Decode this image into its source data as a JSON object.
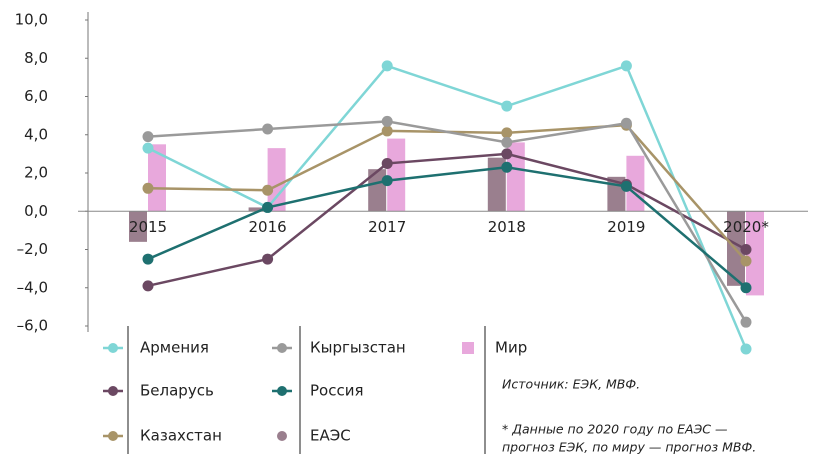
{
  "chart_data": {
    "type": "bar",
    "categories": [
      "2015",
      "2016",
      "2017",
      "2018",
      "2019",
      "2020*"
    ],
    "series": [
      {
        "name": "Армения",
        "type": "line",
        "color": "#7fd6d6",
        "values": [
          3.3,
          0.2,
          7.6,
          5.5,
          7.6,
          -7.2
        ]
      },
      {
        "name": "Беларусь",
        "type": "line",
        "color": "#6b4862",
        "values": [
          -3.9,
          -2.5,
          2.5,
          3.0,
          1.4,
          -2.0
        ]
      },
      {
        "name": "Казахстан",
        "type": "line",
        "color": "#a89468",
        "values": [
          1.2,
          1.1,
          4.2,
          4.1,
          4.5,
          -2.6
        ]
      },
      {
        "name": "Кыргызстан",
        "type": "line",
        "color": "#9a9a9a",
        "values": [
          3.9,
          4.3,
          4.7,
          3.6,
          4.6,
          -5.8
        ]
      },
      {
        "name": "Россия",
        "type": "line",
        "color": "#1e7070",
        "values": [
          -2.5,
          0.2,
          1.6,
          2.3,
          1.3,
          -4.0
        ]
      },
      {
        "name": "ЕАЭС",
        "type": "bar",
        "color": "#9a7f8e",
        "values": [
          -1.6,
          0.2,
          2.2,
          2.8,
          1.8,
          -3.9
        ]
      },
      {
        "name": "Мир",
        "type": "bar",
        "color": "#e8a8dc",
        "values": [
          3.5,
          3.3,
          3.8,
          3.6,
          2.9,
          -4.4
        ]
      }
    ],
    "ylim": [
      -6,
      10
    ],
    "yticks": [
      {
        "value": -6,
        "label": "–6,0"
      },
      {
        "value": -4,
        "label": "–4,0"
      },
      {
        "value": -2,
        "label": "–2,0"
      },
      {
        "value": 0,
        "label": "0,0"
      },
      {
        "value": 2,
        "label": "2,0"
      },
      {
        "value": 4,
        "label": "4,0"
      },
      {
        "value": 6,
        "label": "6,0"
      },
      {
        "value": 8,
        "label": "8,0"
      },
      {
        "value": 10,
        "label": "10,0"
      }
    ],
    "source": "Источник: ЕЭК, МВФ.",
    "note": [
      "* Данные по 2020 году по ЕАЭС —",
      "прогноз ЕЭК, по миру — прогноз МВФ."
    ]
  }
}
